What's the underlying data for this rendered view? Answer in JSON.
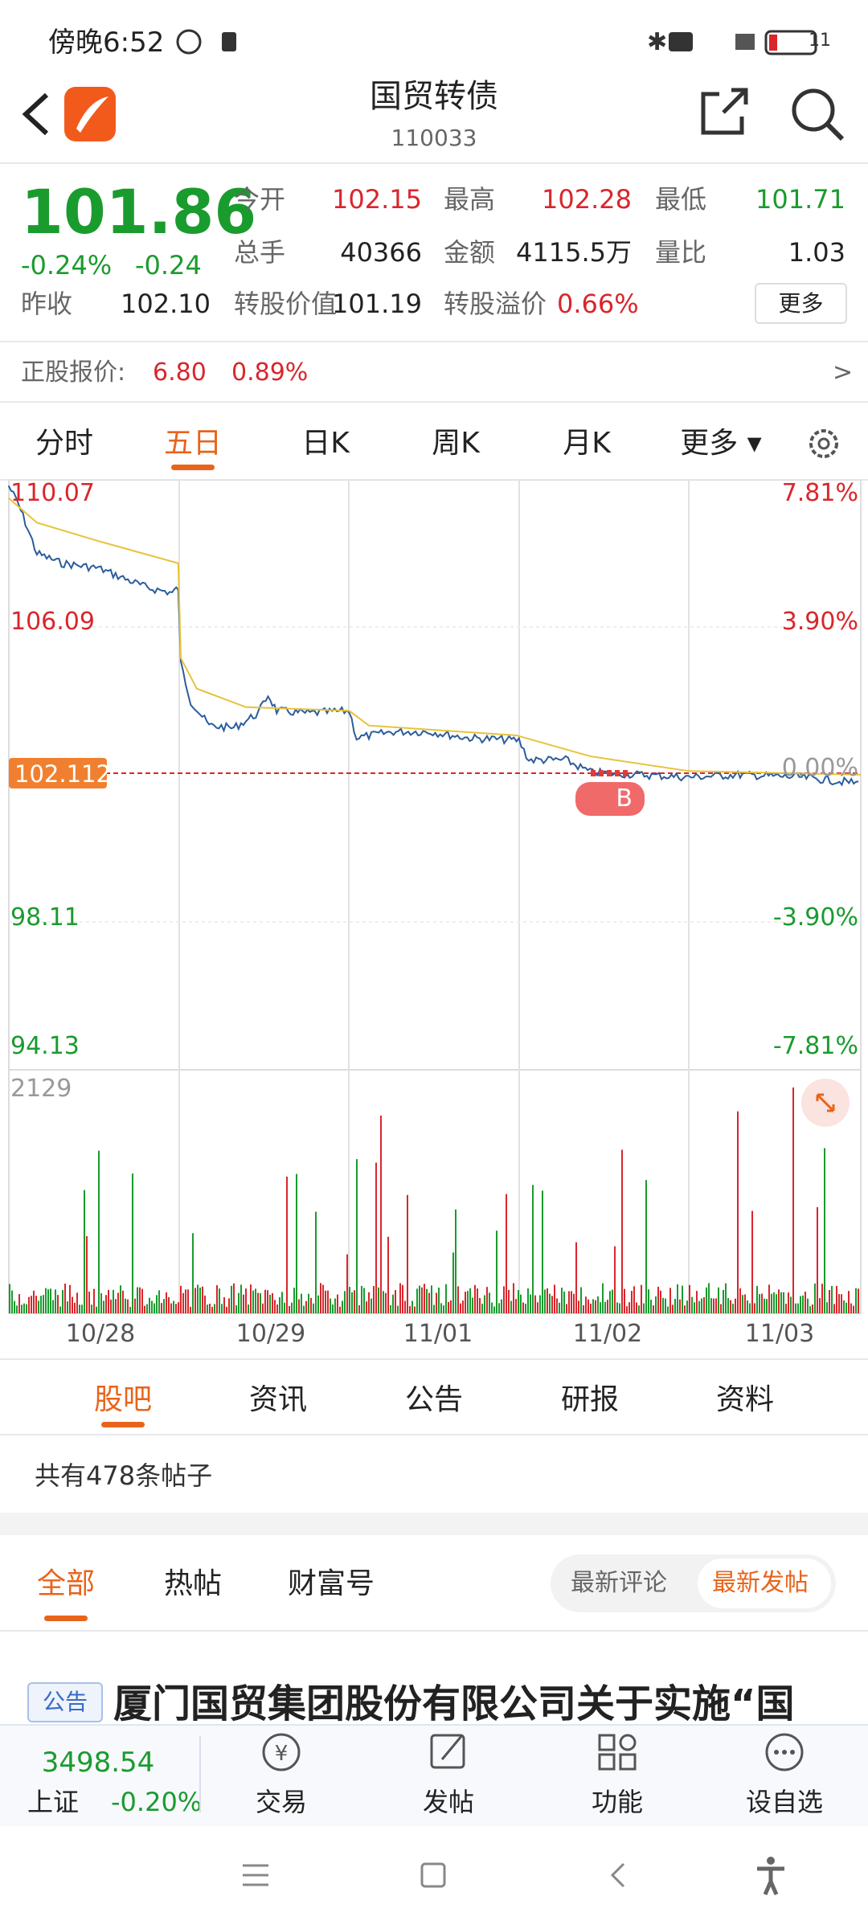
{
  "status_bar": {
    "time": "傍晚6:52",
    "battery": "11"
  },
  "header": {
    "title": "国贸转债",
    "code": "110033"
  },
  "quote": {
    "price": "101.86",
    "change_pct": "-0.24%",
    "change": "-0.24",
    "prev_close_label": "昨收",
    "prev_close": "102.10",
    "fields": [
      {
        "label": "今开",
        "value": "102.15"
      },
      {
        "label": "最高",
        "value": "102.28"
      },
      {
        "label": "最低",
        "value": "101.71"
      },
      {
        "label": "总手",
        "value": "40366"
      },
      {
        "label": "金额",
        "value": "4115.5万"
      },
      {
        "label": "量比",
        "value": "1.03"
      },
      {
        "label": "转股价值",
        "value": "101.19"
      },
      {
        "label": "转股溢价",
        "value": "0.66%"
      }
    ],
    "more": "更多"
  },
  "stock_quote": {
    "label": "正股报价:",
    "price": "6.80",
    "change_pct": "0.89%"
  },
  "chart_tabs": [
    "分时",
    "五日",
    "日K",
    "周K",
    "月K",
    "更多"
  ],
  "chart": {
    "left_labels": [
      "110.07",
      "106.09",
      "98.11",
      "94.13"
    ],
    "current": "102.112",
    "right_labels": [
      "7.81%",
      "3.90%",
      "0.00%",
      "-3.90%",
      "-7.81%"
    ],
    "volume_max": "2129",
    "dates": [
      "10/28",
      "10/29",
      "11/01",
      "11/02",
      "11/03"
    ],
    "marker": "B"
  },
  "section_tabs": [
    "股吧",
    "资讯",
    "公告",
    "研报",
    "资料"
  ],
  "post_count": "共有478条帖子",
  "filter_tabs": [
    "全部",
    "热帖",
    "财富号"
  ],
  "sort": [
    "最新评论",
    "最新发帖"
  ],
  "post": {
    "tag": "公告",
    "title": "厦门国贸集团股份有限公司关于实施“国"
  },
  "bottom_bar": {
    "index_value": "3498.54",
    "index_name": "上证",
    "index_change": "-0.20%",
    "items": [
      "交易",
      "发帖",
      "功能",
      "设自选"
    ]
  }
}
